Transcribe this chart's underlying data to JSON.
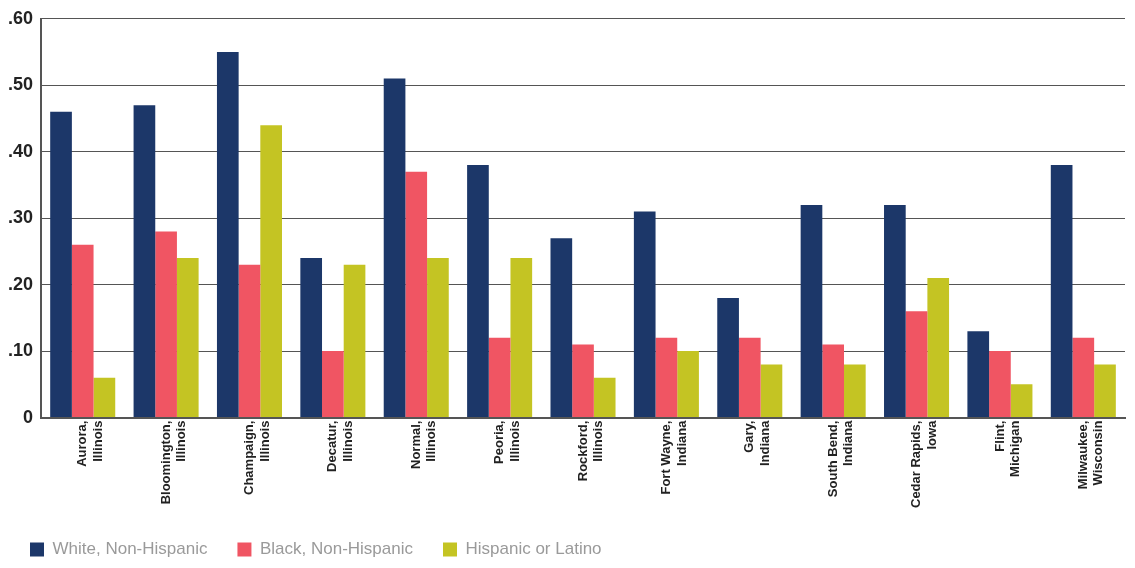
{
  "chart_data": {
    "type": "bar",
    "categories": [
      "Aurora, Illinois",
      "Bloomington, Illinois",
      "Champaign, Illinois",
      "Decatur, Illinois",
      "Normal, Illinois",
      "Peoria, Illinois",
      "Rockford, Illinois",
      "Fort Wayne, Indiana",
      "Gary, Indiana",
      "South Bend, Indiana",
      "Cedar Rapids, Iowa",
      "Flint, Michigan",
      "Milwaukee, Wisconsin"
    ],
    "series": [
      {
        "name": "White, Non-Hispanic",
        "color": "#1c3769",
        "values": [
          0.46,
          0.47,
          0.55,
          0.24,
          0.51,
          0.38,
          0.27,
          0.31,
          0.18,
          0.32,
          0.32,
          0.13,
          0.38
        ]
      },
      {
        "name": "Black, Non-Hispanic",
        "color": "#f05563",
        "values": [
          0.26,
          0.28,
          0.23,
          0.1,
          0.37,
          0.12,
          0.11,
          0.12,
          0.12,
          0.11,
          0.16,
          0.1,
          0.12
        ]
      },
      {
        "name": "Hispanic or Latino",
        "color": "#c4c423",
        "values": [
          0.06,
          0.24,
          0.44,
          0.23,
          0.24,
          0.24,
          0.06,
          0.1,
          0.08,
          0.08,
          0.21,
          0.05,
          0.08
        ]
      }
    ],
    "ylim": [
      0,
      0.6
    ],
    "yticks": [
      {
        "value": 0,
        "label": "0"
      },
      {
        "value": 0.1,
        "label": ".10"
      },
      {
        "value": 0.2,
        "label": ".20"
      },
      {
        "value": 0.3,
        "label": ".30"
      },
      {
        "value": 0.4,
        "label": ".40"
      },
      {
        "value": 0.5,
        "label": ".50"
      },
      {
        "value": 0.6,
        "label": ".60"
      }
    ],
    "grid": "y",
    "legend": "bottom left"
  }
}
